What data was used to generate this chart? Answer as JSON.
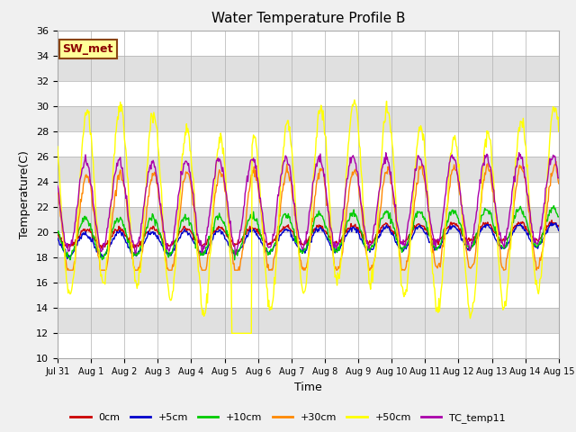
{
  "title": "Water Temperature Profile B",
  "xlabel": "Time",
  "ylabel": "Temperature(C)",
  "ylim": [
    10,
    36
  ],
  "yticks": [
    10,
    12,
    14,
    16,
    18,
    20,
    22,
    24,
    26,
    28,
    30,
    32,
    34,
    36
  ],
  "xtick_labels": [
    "Jul 31",
    "Aug 1",
    "Aug 2",
    "Aug 3",
    "Aug 4",
    "Aug 5",
    "Aug 6",
    "Aug 7",
    "Aug 8",
    "Aug 9",
    "Aug 10",
    "Aug 11",
    "Aug 12",
    "Aug 13",
    "Aug 14",
    "Aug 15"
  ],
  "annotation": "SW_met",
  "line_colors": {
    "0cm": "#cc0000",
    "+5cm": "#0000cc",
    "+10cm": "#00cc00",
    "+30cm": "#ff8800",
    "+50cm": "#ffff00",
    "TC_temp11": "#aa00aa"
  },
  "legend_labels": [
    "0cm",
    "+5cm",
    "+10cm",
    "+30cm",
    "+50cm",
    "TC_temp11"
  ],
  "stripe_colors": [
    "#ffffff",
    "#e0e0e0"
  ],
  "fig_bg": "#f0f0f0",
  "n_days": 15,
  "points_per_day": 48
}
